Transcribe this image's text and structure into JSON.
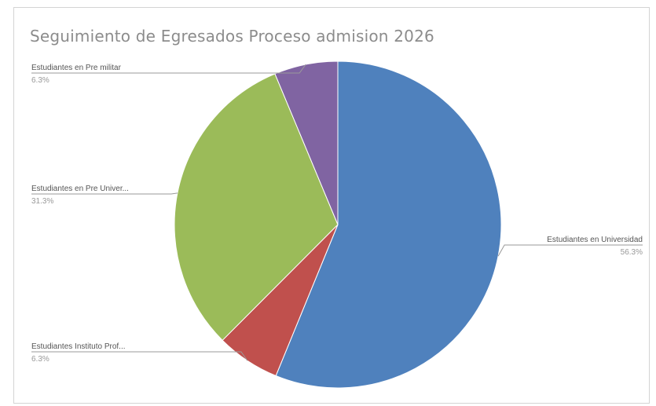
{
  "chart_data": {
    "type": "pie",
    "title": "Seguimiento de Egresados Proceso admision 2026",
    "slices": [
      {
        "label": "Estudiantes en Universidad",
        "percent_label": "56.3%",
        "value": 56.3,
        "color": "#4f81bd"
      },
      {
        "label": "Estudiantes Instituto Prof...",
        "percent_label": "6.3%",
        "value": 6.3,
        "color": "#c0504d"
      },
      {
        "label": "Estudiantes en Pre Univer...",
        "percent_label": "31.3%",
        "value": 31.3,
        "color": "#9bbb59"
      },
      {
        "label": "Estudiantes en Pre militar",
        "percent_label": "6.3%",
        "value": 6.3,
        "color": "#8064a2"
      }
    ],
    "start_angle": "12 o'clock",
    "direction": "clockwise",
    "legend": "none"
  }
}
